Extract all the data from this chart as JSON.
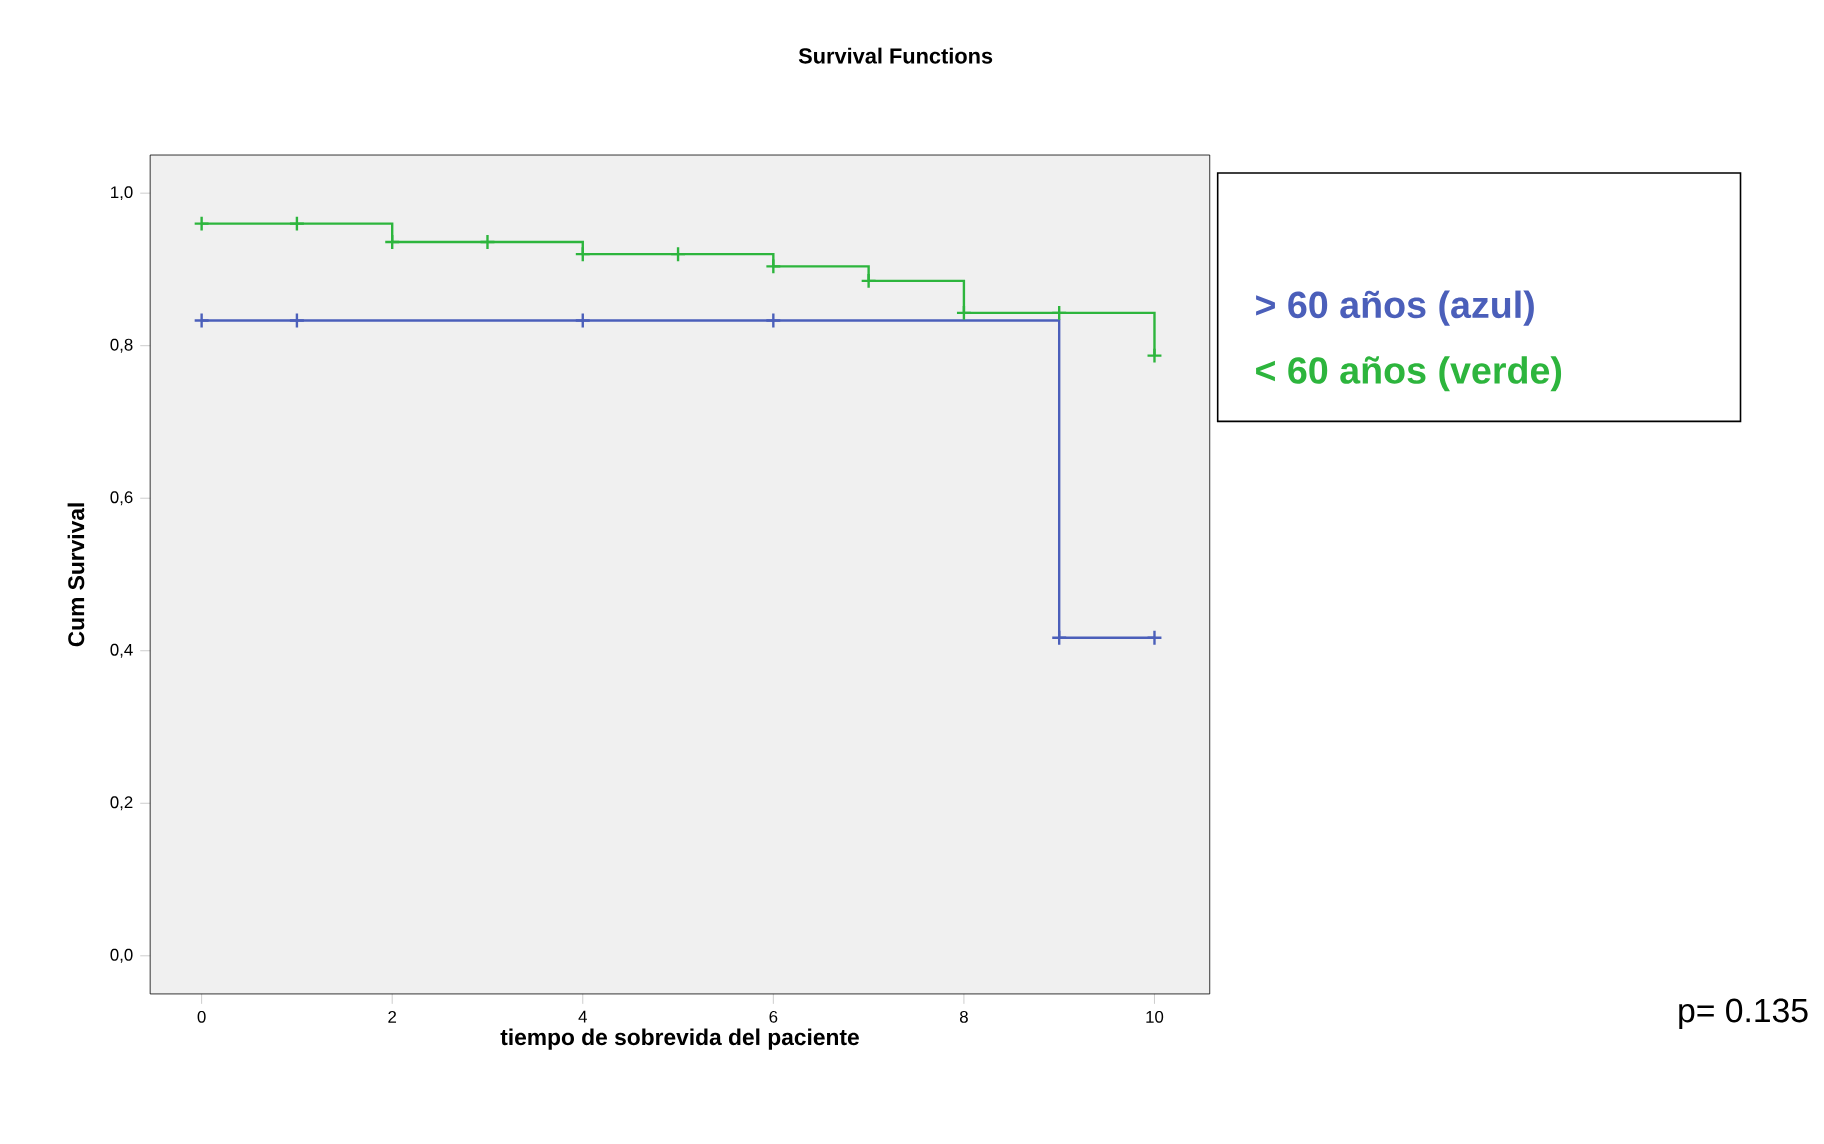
{
  "chart_data": {
    "type": "step",
    "title": "Survival Functions",
    "xlabel": "tiempo de sobrevida del paciente",
    "ylabel": "Cum Survival",
    "xlim": [
      -0.54,
      10.58
    ],
    "ylim": [
      -0.05,
      1.05
    ],
    "xticks": [
      0,
      2,
      4,
      6,
      8,
      10
    ],
    "yticks": [
      {
        "value": 0,
        "label": "0,0"
      },
      {
        "value": 0.2,
        "label": "0,2"
      },
      {
        "value": 0.4,
        "label": "0,4"
      },
      {
        "value": 0.6,
        "label": "0,6"
      },
      {
        "value": 0.8,
        "label": "0,8"
      },
      {
        "value": 1.0,
        "label": "1,0"
      }
    ],
    "marker": "cross",
    "legend": "right",
    "grid": false,
    "series": [
      {
        "name": "> 60 años (azul)",
        "color": "#4b5fba",
        "x": [
          0,
          1,
          4,
          6,
          9,
          10
        ],
        "values": [
          0.833,
          0.833,
          0.833,
          0.833,
          0.417,
          0.417
        ]
      },
      {
        "name": "< 60 años (verde)",
        "color": "#2db53d",
        "x": [
          0,
          1,
          2,
          3,
          4,
          5,
          6,
          7,
          8,
          9,
          10
        ],
        "values": [
          0.96,
          0.96,
          0.936,
          0.936,
          0.92,
          0.92,
          0.904,
          0.885,
          0.843,
          0.843,
          0.787
        ]
      }
    ],
    "annotations": [
      "p= 0.135"
    ]
  }
}
